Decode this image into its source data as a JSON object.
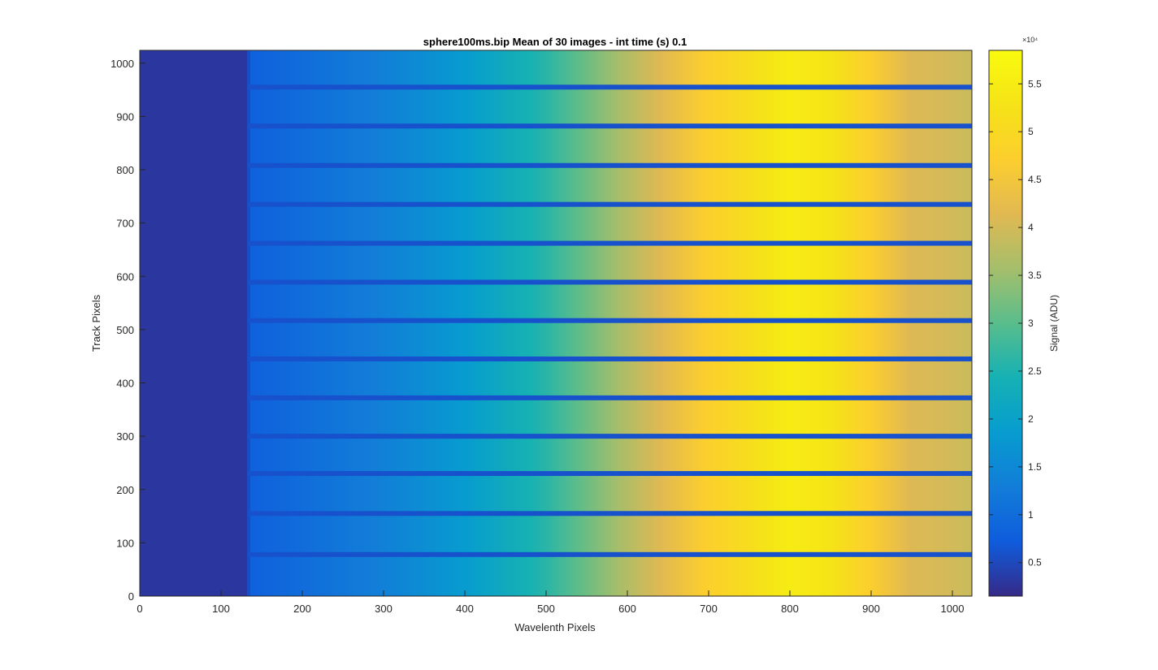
{
  "chart_data": {
    "type": "heatmap",
    "title": "sphere100ms.bip  Mean of 30 images - int time (s) 0.1",
    "xlabel": "Wavelenth Pixels",
    "ylabel": "Track Pixels",
    "xlim": [
      0,
      1024
    ],
    "ylim": [
      0,
      1024
    ],
    "x_ticks": [
      0,
      100,
      200,
      300,
      400,
      500,
      600,
      700,
      800,
      900,
      1000
    ],
    "y_ticks": [
      0,
      100,
      200,
      300,
      400,
      500,
      600,
      700,
      800,
      900,
      1000
    ],
    "colormap": "parula",
    "colorbar": {
      "label": "Signal (ADU)",
      "exponent_label": "×10⁴",
      "range": [
        0.15,
        5.85
      ],
      "ticks": [
        0.5,
        1,
        1.5,
        2,
        2.5,
        3,
        3.5,
        4,
        4.5,
        5,
        5.5
      ],
      "tick_labels": [
        "0.5",
        "1",
        "1.5",
        "2",
        "2.5",
        "3",
        "3.5",
        "4",
        "4.5",
        "5",
        "5.5"
      ]
    },
    "dark_region_x_end": 133,
    "dark_stripe_track_pixels": [
      78,
      155,
      230,
      300,
      372,
      445,
      517,
      589,
      662,
      735,
      808,
      882,
      955
    ],
    "spectral_profile": {
      "x": [
        0,
        133,
        135,
        200,
        300,
        400,
        500,
        600,
        700,
        800,
        850,
        900,
        950,
        1000,
        1024
      ],
      "signal_1e4": [
        0.3,
        0.3,
        0.8,
        1.0,
        1.35,
        1.85,
        2.6,
        3.7,
        4.75,
        5.5,
        5.3,
        4.7,
        4.1,
        4.0,
        3.9
      ]
    }
  }
}
